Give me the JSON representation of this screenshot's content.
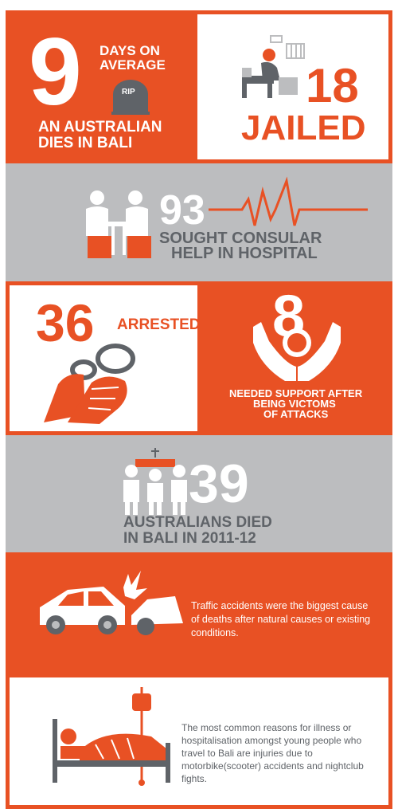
{
  "colors": {
    "orange": "#e85124",
    "gray": "#bcbdbf",
    "dark_gray": "#5f6368",
    "white": "#ffffff"
  },
  "stat1": {
    "number": "9",
    "line1": "DAYS ON",
    "line2": "AVERAGE",
    "tomb": "RIP",
    "caption1": "AN AUSTRALIAN",
    "caption2": "DIES IN BALI"
  },
  "stat2": {
    "number": "18",
    "label": "JAILED"
  },
  "stat3": {
    "number": "93",
    "caption1": "SOUGHT CONSULAR",
    "caption2": "HELP IN HOSPITAL"
  },
  "stat4": {
    "number": "36",
    "label": "ARRESTED"
  },
  "stat5": {
    "number": "8",
    "caption1": "NEEDED SUPPORT AFTER",
    "caption2": "BEING VICTOMS",
    "caption3": "OF ATTACKS"
  },
  "stat6": {
    "number": "39",
    "caption1": "AUSTRALIANS DIED",
    "caption2": "IN BALI IN 2011-12"
  },
  "note1": {
    "text": "Traffic accidents were the biggest cause of deaths after natural causes or existing conditions."
  },
  "note2": {
    "text": "The most common reasons for illness or hospitalisation amongst young people who travel to Bali are injuries due to motorbike(scooter) accidents and nightclub fights."
  },
  "icons": [
    "tombstone-icon",
    "prisoner-icon",
    "hospital-visit-icon",
    "heartbeat-icon",
    "handcuffed-hands-icon",
    "protecting-hands-icon",
    "coffin-bearers-icon",
    "car-crash-icon",
    "hospital-bed-icon"
  ]
}
